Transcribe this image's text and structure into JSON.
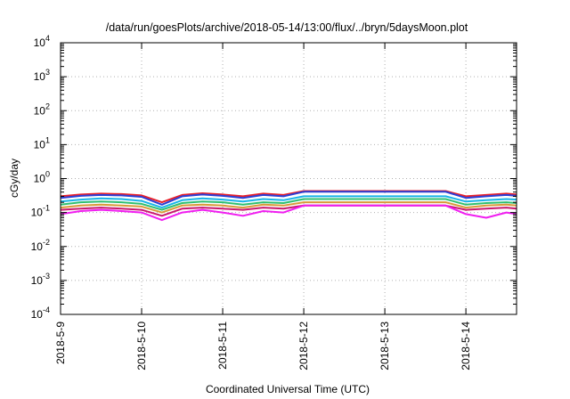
{
  "chart_data": {
    "type": "line",
    "title": "/data/run/goesPlots/archive/2018-05-14/13:00/flux/../bryn/5daysMoon.plot",
    "xlabel": "Coordinated Universal Time (UTC)",
    "ylabel": "cGy/day",
    "yscale": "log",
    "ylim": [
      0.0001,
      10000
    ],
    "xlim": [
      "2018-05-09 00:00",
      "2018-05-14 15:00"
    ],
    "grid": true,
    "x_ticks": [
      "2018-5-9",
      "2018-5-10",
      "2018-5-11",
      "2018-5-12",
      "2018-5-13",
      "2018-5-14"
    ],
    "y_ticks": [
      {
        "base": "10",
        "exp": "4"
      },
      {
        "base": "10",
        "exp": "3"
      },
      {
        "base": "10",
        "exp": "2"
      },
      {
        "base": "10",
        "exp": "1"
      },
      {
        "base": "10",
        "exp": "0"
      },
      {
        "base": "10",
        "exp": "-1"
      },
      {
        "base": "10",
        "exp": "-2"
      },
      {
        "base": "10",
        "exp": "-3"
      },
      {
        "base": "10",
        "exp": "-4"
      }
    ],
    "x": [
      "2018-05-09 00:00",
      "2018-05-09 06:00",
      "2018-05-09 12:00",
      "2018-05-09 18:00",
      "2018-05-10 00:00",
      "2018-05-10 06:00",
      "2018-05-10 12:00",
      "2018-05-10 18:00",
      "2018-05-11 00:00",
      "2018-05-11 06:00",
      "2018-05-11 12:00",
      "2018-05-11 18:00",
      "2018-05-12 00:00",
      "2018-05-12 12:00",
      "2018-05-13 00:00",
      "2018-05-13 12:00",
      "2018-05-13 18:00",
      "2018-05-14 00:00",
      "2018-05-14 06:00",
      "2018-05-14 12:00",
      "2018-05-14 15:00"
    ],
    "series": [
      {
        "color": "#e8202a",
        "values": [
          0.3,
          0.34,
          0.36,
          0.35,
          0.32,
          0.2,
          0.33,
          0.37,
          0.34,
          0.3,
          0.36,
          0.33,
          0.43,
          0.43,
          0.43,
          0.43,
          0.43,
          0.3,
          0.33,
          0.36,
          0.34
        ]
      },
      {
        "color": "#2b3fd6",
        "values": [
          0.27,
          0.31,
          0.33,
          0.32,
          0.29,
          0.17,
          0.3,
          0.34,
          0.31,
          0.27,
          0.33,
          0.3,
          0.41,
          0.41,
          0.41,
          0.41,
          0.41,
          0.27,
          0.3,
          0.33,
          0.31
        ]
      },
      {
        "color": "#19b4e8",
        "values": [
          0.21,
          0.24,
          0.26,
          0.25,
          0.22,
          0.14,
          0.23,
          0.26,
          0.24,
          0.21,
          0.25,
          0.23,
          0.3,
          0.3,
          0.3,
          0.3,
          0.3,
          0.21,
          0.23,
          0.25,
          0.24
        ]
      },
      {
        "color": "#2fbf71",
        "values": [
          0.17,
          0.2,
          0.21,
          0.2,
          0.18,
          0.12,
          0.19,
          0.21,
          0.2,
          0.17,
          0.2,
          0.19,
          0.25,
          0.25,
          0.25,
          0.25,
          0.25,
          0.17,
          0.19,
          0.2,
          0.19
        ]
      },
      {
        "color": "#d89a3a",
        "values": [
          0.14,
          0.16,
          0.17,
          0.16,
          0.15,
          0.1,
          0.16,
          0.17,
          0.16,
          0.14,
          0.17,
          0.16,
          0.2,
          0.2,
          0.2,
          0.2,
          0.2,
          0.14,
          0.16,
          0.17,
          0.16
        ]
      },
      {
        "color": "#c8186e",
        "values": [
          0.12,
          0.13,
          0.14,
          0.13,
          0.12,
          0.08,
          0.13,
          0.14,
          0.13,
          0.12,
          0.14,
          0.13,
          0.16,
          0.16,
          0.16,
          0.16,
          0.16,
          0.12,
          0.13,
          0.14,
          0.13
        ]
      },
      {
        "color": "#f01ef0",
        "values": [
          0.09,
          0.11,
          0.12,
          0.11,
          0.1,
          0.06,
          0.1,
          0.12,
          0.1,
          0.08,
          0.11,
          0.1,
          0.16,
          0.16,
          0.16,
          0.16,
          0.16,
          0.09,
          0.07,
          0.1,
          0.09
        ]
      }
    ]
  }
}
